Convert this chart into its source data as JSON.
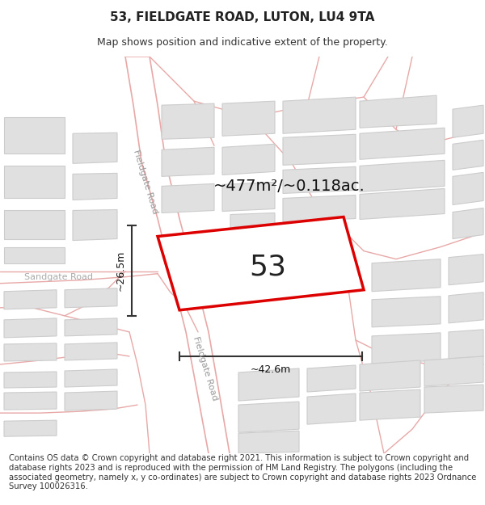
{
  "title": "53, FIELDGATE ROAD, LUTON, LU4 9TA",
  "subtitle": "Map shows position and indicative extent of the property.",
  "footer": "Contains OS data © Crown copyright and database right 2021. This information is subject to Crown copyright and database rights 2023 and is reproduced with the permission of HM Land Registry. The polygons (including the associated geometry, namely x, y co-ordinates) are subject to Crown copyright and database rights 2023 Ordnance Survey 100026316.",
  "area_text": "~477m²/~0.118ac.",
  "number_text": "53",
  "width_text": "~42.6m",
  "height_text": "~26.5m",
  "map_bg": "#f9f9f9",
  "road_line_color": "#e8a8a8",
  "road_fill_color": "#f5f5f5",
  "building_fill": "#e0e0e0",
  "building_edge": "#cccccc",
  "highlight_color": "#dd0000",
  "road_label_color": "#999999",
  "sandgate_label_color": "#aaaaaa",
  "title_fontsize": 11,
  "subtitle_fontsize": 9,
  "footer_fontsize": 7.2,
  "area_fontsize": 14,
  "number_fontsize": 26,
  "dim_fontsize": 9,
  "road_label_fontsize": 8
}
